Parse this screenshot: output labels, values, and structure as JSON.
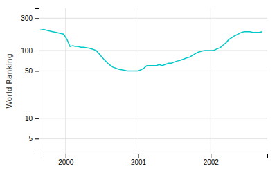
{
  "chart_data": {
    "type": "line",
    "ylabel": "World Ranking",
    "x": [
      1999.65,
      1999.7,
      1999.73,
      1999.77,
      1999.82,
      1999.87,
      1999.92,
      1999.97,
      2000.02,
      2000.06,
      2000.1,
      2000.13,
      2000.17,
      2000.21,
      2000.25,
      2000.29,
      2000.33,
      2000.37,
      2000.42,
      2000.46,
      2000.5,
      2000.54,
      2000.58,
      2000.62,
      2000.65,
      2000.69,
      2000.73,
      2000.77,
      2000.81,
      2000.85,
      2000.88,
      2000.92,
      2000.96,
      2001.0,
      2001.04,
      2001.08,
      2001.12,
      2001.17,
      2001.21,
      2001.25,
      2001.29,
      2001.33,
      2001.37,
      2001.42,
      2001.46,
      2001.5,
      2001.54,
      2001.58,
      2001.63,
      2001.67,
      2001.71,
      2001.75,
      2001.79,
      2001.83,
      2001.88,
      2001.92,
      2001.96,
      2002.0,
      2002.04,
      2002.08,
      2002.13,
      2002.17,
      2002.21,
      2002.25,
      2002.29,
      2002.33,
      2002.38,
      2002.42,
      2002.46,
      2002.5,
      2002.54,
      2002.58,
      2002.63,
      2002.67,
      2002.71
    ],
    "values": [
      200,
      205,
      200,
      195,
      190,
      185,
      180,
      175,
      145,
      115,
      118,
      115,
      115,
      112,
      112,
      110,
      108,
      105,
      100,
      90,
      80,
      72,
      65,
      60,
      57,
      55,
      53,
      52,
      51,
      50,
      50,
      50,
      50,
      50,
      52,
      55,
      60,
      60,
      60,
      60,
      62,
      60,
      62,
      65,
      65,
      68,
      70,
      72,
      75,
      78,
      80,
      85,
      90,
      95,
      98,
      100,
      100,
      100,
      100,
      105,
      110,
      120,
      130,
      145,
      155,
      165,
      175,
      185,
      190,
      190,
      190,
      185,
      185,
      185,
      190
    ],
    "color": "#00c8c8",
    "xlim": [
      1999.63,
      2002.78
    ],
    "ylim": [
      3,
      420
    ],
    "xticks": [
      2000,
      2001,
      2002
    ],
    "yticks": [
      5,
      10,
      50,
      100,
      300
    ],
    "log": "y",
    "grid": true
  }
}
